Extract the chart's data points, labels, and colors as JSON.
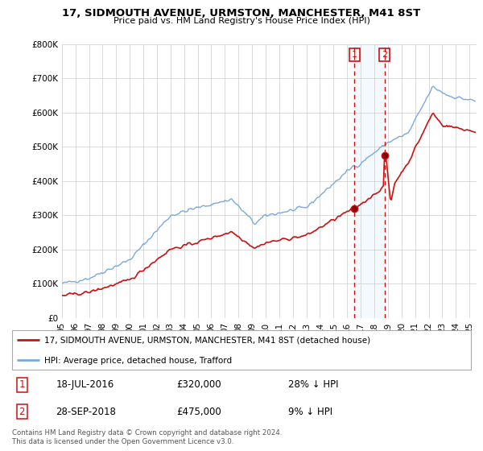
{
  "title": "17, SIDMOUTH AVENUE, URMSTON, MANCHESTER, M41 8ST",
  "subtitle": "Price paid vs. HM Land Registry's House Price Index (HPI)",
  "legend_line1": "17, SIDMOUTH AVENUE, URMSTON, MANCHESTER, M41 8ST (detached house)",
  "legend_line2": "HPI: Average price, detached house, Trafford",
  "transaction1_date": "18-JUL-2016",
  "transaction1_price": 320000,
  "transaction1_pct": "28% ↓ HPI",
  "transaction2_date": "28-SEP-2018",
  "transaction2_price": 475000,
  "transaction2_pct": "9% ↓ HPI",
  "footer": "Contains HM Land Registry data © Crown copyright and database right 2024.\nThis data is licensed under the Open Government Licence v3.0.",
  "hpi_color": "#7aaadd",
  "price_color": "#cc1111",
  "vline_color": "#cc1111",
  "shade_color": "#ddeeff",
  "marker_box_color": "#cc1111",
  "ylim": [
    0,
    800000
  ],
  "xlim_start": 1995.0,
  "xlim_end": 2025.5,
  "t1_year": 2016.542,
  "t2_year": 2018.747
}
